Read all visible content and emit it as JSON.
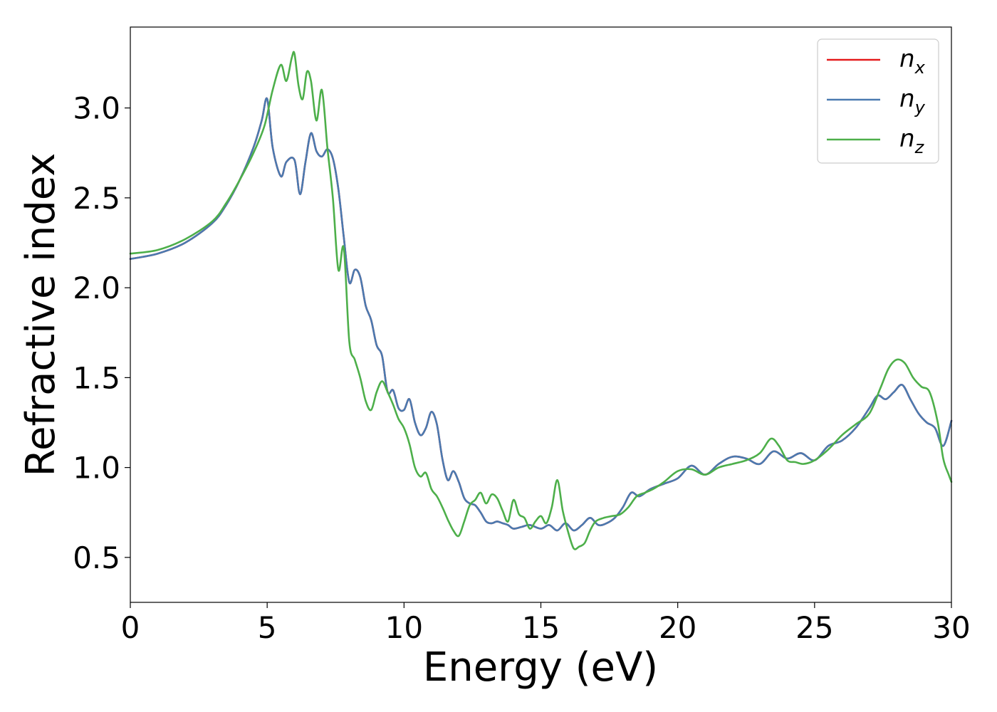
{
  "chart_data": {
    "type": "line",
    "title": "",
    "xlabel": "Energy (eV)",
    "ylabel": "Refractive index",
    "xlim": [
      0,
      30
    ],
    "ylim": [
      0.25,
      3.45
    ],
    "xticks": [
      0,
      5,
      10,
      15,
      20,
      25,
      30
    ],
    "xtick_labels": [
      "0",
      "5",
      "10",
      "15",
      "20",
      "25",
      "30"
    ],
    "yticks": [
      0.5,
      1.0,
      1.5,
      2.0,
      2.5,
      3.0
    ],
    "ytick_labels": [
      "0.5",
      "1.0",
      "1.5",
      "2.0",
      "2.5",
      "3.0"
    ],
    "grid": false,
    "legend_position": "top-right",
    "series": [
      {
        "name": "n_x",
        "label_base": "n",
        "label_sub": "x",
        "color": "#e41a1c",
        "x": [
          0,
          1,
          2,
          3,
          3.5,
          4,
          4.5,
          4.8,
          5.0,
          5.2,
          5.5,
          5.7,
          6.0,
          6.2,
          6.4,
          6.6,
          6.8,
          7.0,
          7.2,
          7.4,
          7.6,
          7.8,
          8.0,
          8.2,
          8.4,
          8.6,
          8.8,
          9.0,
          9.2,
          9.4,
          9.6,
          9.8,
          10.0,
          10.2,
          10.4,
          10.6,
          10.8,
          11.0,
          11.2,
          11.4,
          11.6,
          11.8,
          12.0,
          12.2,
          12.4,
          12.6,
          12.8,
          13.0,
          13.2,
          13.4,
          13.6,
          13.8,
          14.0,
          14.3,
          14.6,
          15.0,
          15.3,
          15.6,
          15.9,
          16.2,
          16.5,
          16.8,
          17.1,
          17.4,
          17.7,
          18.0,
          18.3,
          18.6,
          19.0,
          19.5,
          20.0,
          20.5,
          21.0,
          21.5,
          22.0,
          22.5,
          23.0,
          23.5,
          24.0,
          24.5,
          25.0,
          25.5,
          26.0,
          26.5,
          27.0,
          27.3,
          27.6,
          27.9,
          28.2,
          28.5,
          28.8,
          29.1,
          29.4,
          29.7,
          30.0
        ],
        "y": [
          2.16,
          2.19,
          2.25,
          2.36,
          2.46,
          2.6,
          2.78,
          2.93,
          3.05,
          2.78,
          2.62,
          2.7,
          2.71,
          2.52,
          2.7,
          2.86,
          2.76,
          2.73,
          2.77,
          2.72,
          2.55,
          2.28,
          2.03,
          2.1,
          2.06,
          1.9,
          1.82,
          1.68,
          1.62,
          1.42,
          1.43,
          1.33,
          1.32,
          1.38,
          1.25,
          1.18,
          1.22,
          1.31,
          1.24,
          1.05,
          0.93,
          0.98,
          0.92,
          0.83,
          0.8,
          0.79,
          0.75,
          0.7,
          0.69,
          0.7,
          0.69,
          0.68,
          0.66,
          0.67,
          0.68,
          0.66,
          0.68,
          0.65,
          0.69,
          0.65,
          0.68,
          0.72,
          0.68,
          0.69,
          0.72,
          0.78,
          0.86,
          0.84,
          0.88,
          0.91,
          0.94,
          1.01,
          0.96,
          1.02,
          1.06,
          1.05,
          1.02,
          1.09,
          1.05,
          1.08,
          1.04,
          1.12,
          1.15,
          1.22,
          1.33,
          1.4,
          1.38,
          1.42,
          1.46,
          1.38,
          1.3,
          1.25,
          1.22,
          1.12,
          1.26
        ]
      },
      {
        "name": "n_y",
        "label_base": "n",
        "label_sub": "y",
        "color": "#4a7ab0",
        "x": [
          0,
          1,
          2,
          3,
          3.5,
          4,
          4.5,
          4.8,
          5.0,
          5.2,
          5.5,
          5.7,
          6.0,
          6.2,
          6.4,
          6.6,
          6.8,
          7.0,
          7.2,
          7.4,
          7.6,
          7.8,
          8.0,
          8.2,
          8.4,
          8.6,
          8.8,
          9.0,
          9.2,
          9.4,
          9.6,
          9.8,
          10.0,
          10.2,
          10.4,
          10.6,
          10.8,
          11.0,
          11.2,
          11.4,
          11.6,
          11.8,
          12.0,
          12.2,
          12.4,
          12.6,
          12.8,
          13.0,
          13.2,
          13.4,
          13.6,
          13.8,
          14.0,
          14.3,
          14.6,
          15.0,
          15.3,
          15.6,
          15.9,
          16.2,
          16.5,
          16.8,
          17.1,
          17.4,
          17.7,
          18.0,
          18.3,
          18.6,
          19.0,
          19.5,
          20.0,
          20.5,
          21.0,
          21.5,
          22.0,
          22.5,
          23.0,
          23.5,
          24.0,
          24.5,
          25.0,
          25.5,
          26.0,
          26.5,
          27.0,
          27.3,
          27.6,
          27.9,
          28.2,
          28.5,
          28.8,
          29.1,
          29.4,
          29.7,
          30.0
        ],
        "y": [
          2.16,
          2.19,
          2.25,
          2.36,
          2.46,
          2.6,
          2.78,
          2.93,
          3.05,
          2.78,
          2.62,
          2.7,
          2.71,
          2.52,
          2.7,
          2.86,
          2.76,
          2.73,
          2.77,
          2.72,
          2.55,
          2.28,
          2.03,
          2.1,
          2.06,
          1.9,
          1.82,
          1.68,
          1.62,
          1.42,
          1.43,
          1.33,
          1.32,
          1.38,
          1.25,
          1.18,
          1.22,
          1.31,
          1.24,
          1.05,
          0.93,
          0.98,
          0.92,
          0.83,
          0.8,
          0.79,
          0.75,
          0.7,
          0.69,
          0.7,
          0.69,
          0.68,
          0.66,
          0.67,
          0.68,
          0.66,
          0.68,
          0.65,
          0.69,
          0.65,
          0.68,
          0.72,
          0.68,
          0.69,
          0.72,
          0.78,
          0.86,
          0.84,
          0.88,
          0.91,
          0.94,
          1.01,
          0.96,
          1.02,
          1.06,
          1.05,
          1.02,
          1.09,
          1.05,
          1.08,
          1.04,
          1.12,
          1.15,
          1.22,
          1.33,
          1.4,
          1.38,
          1.42,
          1.46,
          1.38,
          1.3,
          1.25,
          1.22,
          1.12,
          1.26
        ]
      },
      {
        "name": "n_z",
        "label_base": "n",
        "label_sub": "z",
        "color": "#4daf4a",
        "x": [
          0,
          1,
          2,
          3,
          3.5,
          4,
          4.5,
          4.9,
          5.2,
          5.5,
          5.7,
          5.9,
          6.0,
          6.15,
          6.3,
          6.45,
          6.6,
          6.8,
          7.0,
          7.2,
          7.4,
          7.6,
          7.8,
          8.0,
          8.2,
          8.4,
          8.6,
          8.8,
          9.0,
          9.2,
          9.4,
          9.6,
          9.8,
          10.0,
          10.2,
          10.4,
          10.6,
          10.8,
          11.0,
          11.2,
          11.4,
          11.6,
          11.8,
          12.0,
          12.2,
          12.4,
          12.6,
          12.8,
          13.0,
          13.2,
          13.4,
          13.6,
          13.8,
          14.0,
          14.2,
          14.4,
          14.6,
          14.8,
          15.0,
          15.2,
          15.4,
          15.6,
          15.8,
          16.0,
          16.2,
          16.4,
          16.6,
          16.8,
          17.0,
          17.3,
          17.6,
          17.9,
          18.2,
          18.5,
          18.8,
          19.1,
          19.5,
          20.0,
          20.5,
          21.0,
          21.5,
          22.0,
          22.5,
          23.0,
          23.4,
          23.7,
          24.0,
          24.3,
          24.6,
          25.0,
          25.5,
          26.0,
          26.5,
          27.0,
          27.4,
          27.7,
          28.0,
          28.3,
          28.6,
          28.9,
          29.2,
          29.5,
          29.7,
          29.9,
          30.0
        ],
        "y": [
          2.19,
          2.21,
          2.27,
          2.37,
          2.47,
          2.6,
          2.75,
          2.9,
          3.1,
          3.24,
          3.15,
          3.28,
          3.3,
          3.12,
          3.05,
          3.2,
          3.15,
          2.93,
          3.1,
          2.78,
          2.5,
          2.1,
          2.22,
          1.7,
          1.6,
          1.5,
          1.37,
          1.32,
          1.42,
          1.48,
          1.42,
          1.35,
          1.27,
          1.22,
          1.13,
          1.0,
          0.95,
          0.97,
          0.88,
          0.84,
          0.78,
          0.71,
          0.65,
          0.62,
          0.7,
          0.79,
          0.82,
          0.86,
          0.8,
          0.85,
          0.83,
          0.76,
          0.7,
          0.82,
          0.74,
          0.72,
          0.66,
          0.7,
          0.73,
          0.69,
          0.78,
          0.93,
          0.76,
          0.64,
          0.55,
          0.56,
          0.58,
          0.65,
          0.7,
          0.72,
          0.73,
          0.74,
          0.78,
          0.84,
          0.86,
          0.88,
          0.92,
          0.98,
          0.99,
          0.96,
          1.0,
          1.02,
          1.04,
          1.08,
          1.16,
          1.12,
          1.04,
          1.03,
          1.02,
          1.04,
          1.1,
          1.18,
          1.24,
          1.3,
          1.44,
          1.55,
          1.6,
          1.58,
          1.5,
          1.45,
          1.42,
          1.25,
          1.05,
          0.96,
          0.92
        ]
      }
    ]
  }
}
